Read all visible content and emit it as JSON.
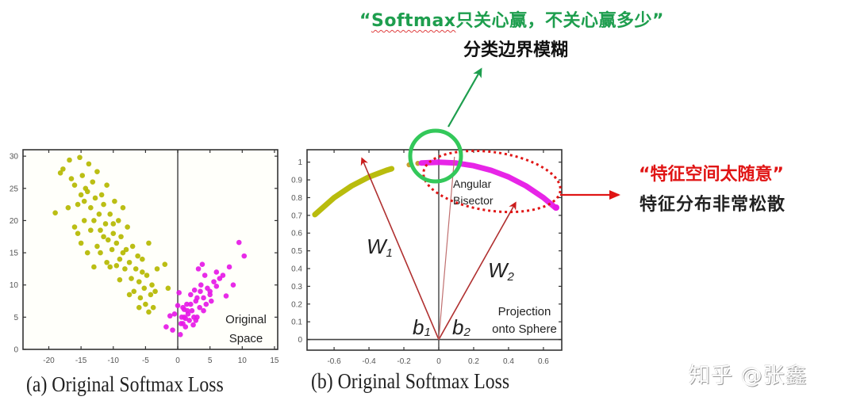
{
  "annotations": {
    "top": {
      "quote_open": "“",
      "softmax_word": "Softmax",
      "title_rest": "只关心赢，不关心赢多少",
      "quote_close": "”",
      "subtitle": "分类边界模糊",
      "color": "#1e9e4e"
    },
    "right": {
      "title": "“特征空间太随意”",
      "subtitle": "特征分布非常松散",
      "color": "#e01515"
    }
  },
  "captions": {
    "a": "(a) Original Softmax Loss",
    "b": "(b) Original Softmax Loss"
  },
  "watermark": "知乎 @张鑫",
  "chart_data": [
    {
      "type": "scatter",
      "title": "(a) Original Softmax Loss",
      "annotation": "Original Space",
      "annotation_lines": [
        "Original",
        "Space"
      ],
      "xlabel": "",
      "ylabel": "",
      "xlim": [
        -24,
        15.5
      ],
      "ylim": [
        0,
        31
      ],
      "xticks": [
        -20,
        -15,
        -10,
        -5,
        0,
        5,
        10,
        15
      ],
      "yticks": [
        0,
        5,
        10,
        15,
        20,
        25,
        30
      ],
      "grid": false,
      "series": [
        {
          "name": "class 1",
          "color": "#b5b800",
          "description": "elongated cluster from about (-19, 29) down to (-4, 6)",
          "points": [
            [
              -19,
              21.2
            ],
            [
              -18.2,
              27.4
            ],
            [
              -17.8,
              28
            ],
            [
              -17,
              22
            ],
            [
              -16.8,
              29.4
            ],
            [
              -16.5,
              26.5
            ],
            [
              -16,
              25.5
            ],
            [
              -15.5,
              22.5
            ],
            [
              -15.2,
              29.8
            ],
            [
              -15,
              24
            ],
            [
              -14.8,
              27
            ],
            [
              -14.5,
              23
            ],
            [
              -14.3,
              25
            ],
            [
              -14,
              24.5
            ],
            [
              -13.8,
              28.8
            ],
            [
              -13.5,
              22
            ],
            [
              -13.2,
              26
            ],
            [
              -13,
              20
            ],
            [
              -12.8,
              23.5
            ],
            [
              -12.5,
              27.6
            ],
            [
              -12.2,
              21
            ],
            [
              -12,
              18.5
            ],
            [
              -11.8,
              24
            ],
            [
              -11.5,
              22.5
            ],
            [
              -11.2,
              19.5
            ],
            [
              -11,
              25.5
            ],
            [
              -10.8,
              17
            ],
            [
              -10.5,
              21
            ],
            [
              -10.2,
              15.5
            ],
            [
              -10,
              18
            ],
            [
              -9.8,
              23
            ],
            [
              -9.5,
              16.5
            ],
            [
              -9.2,
              20
            ],
            [
              -9,
              14
            ],
            [
              -8.8,
              17.5
            ],
            [
              -8.5,
              22
            ],
            [
              -8.2,
              12.5
            ],
            [
              -8,
              15.5
            ],
            [
              -7.8,
              19
            ],
            [
              -7.5,
              13.5
            ],
            [
              -7.2,
              11
            ],
            [
              -7,
              16
            ],
            [
              -6.8,
              9
            ],
            [
              -6.5,
              12.5
            ],
            [
              -6.2,
              14.5
            ],
            [
              -6,
              10.5
            ],
            [
              -5.8,
              8
            ],
            [
              -5.5,
              12
            ],
            [
              -5.2,
              9.5
            ],
            [
              -5,
              7
            ],
            [
              -4.8,
              11.5
            ],
            [
              -4.5,
              5.8
            ],
            [
              -4.2,
              8.5
            ],
            [
              -4,
              10
            ],
            [
              -3.8,
              6.5
            ],
            [
              -3.5,
              9
            ],
            [
              -3.2,
              12.5
            ],
            [
              -2,
              13.2
            ],
            [
              -1.5,
              9.5
            ],
            [
              -12.5,
              16
            ],
            [
              -13.5,
              18.5
            ],
            [
              -11,
              13.5
            ],
            [
              -15,
              16.5
            ],
            [
              -16,
              19
            ],
            [
              -14,
              15
            ],
            [
              -9,
              10.8
            ],
            [
              -10.5,
              12.8
            ],
            [
              -7.5,
              8.5
            ],
            [
              -13,
              12.8
            ],
            [
              -12,
              15
            ],
            [
              -11.5,
              17.5
            ],
            [
              -10,
              19.5
            ],
            [
              -8.5,
              15
            ],
            [
              -9.5,
              13
            ],
            [
              -14.5,
              20
            ],
            [
              -15.5,
              18
            ],
            [
              -6,
              6.5
            ],
            [
              -5.5,
              14
            ],
            [
              -4.5,
              16.5
            ]
          ]
        },
        {
          "name": "class 2",
          "color": "#e619e6",
          "description": "cluster from about (0, 2.5) extending to (10, 16.5)",
          "points": [
            [
              -1.8,
              3.5
            ],
            [
              -1.2,
              5.2
            ],
            [
              -0.8,
              3
            ],
            [
              0,
              6.8
            ],
            [
              0.2,
              8.8
            ],
            [
              0.4,
              2.3
            ],
            [
              0.6,
              5
            ],
            [
              0.8,
              4
            ],
            [
              1,
              6.2
            ],
            [
              1.2,
              3.5
            ],
            [
              1.4,
              7
            ],
            [
              1.6,
              5.5
            ],
            [
              1.8,
              4.5
            ],
            [
              2,
              8.5
            ],
            [
              2.2,
              6
            ],
            [
              2.4,
              3.8
            ],
            [
              2.6,
              9.2
            ],
            [
              2.8,
              7.5
            ],
            [
              3,
              5
            ],
            [
              3.2,
              12.5
            ],
            [
              3.4,
              6.5
            ],
            [
              3.6,
              10
            ],
            [
              3.8,
              13.2
            ],
            [
              4,
              8
            ],
            [
              4.2,
              11.5
            ],
            [
              4.4,
              7
            ],
            [
              4.6,
              9.5
            ],
            [
              5,
              9
            ],
            [
              5.2,
              7.5
            ],
            [
              5.6,
              10.5
            ],
            [
              6,
              12
            ],
            [
              6.5,
              11
            ],
            [
              7,
              11.5
            ],
            [
              7.5,
              8.3
            ],
            [
              8,
              12.8
            ],
            [
              8.6,
              10
            ],
            [
              9.5,
              16.6
            ],
            [
              10.3,
              14.5
            ],
            [
              1,
              5
            ],
            [
              1.5,
              6
            ],
            [
              2.5,
              5
            ],
            [
              0.5,
              4
            ],
            [
              3,
              8
            ],
            [
              2,
              7
            ],
            [
              1.2,
              4.8
            ],
            [
              0.8,
              6.5
            ],
            [
              4,
              6
            ],
            [
              5,
              8.5
            ],
            [
              6,
              9.8
            ],
            [
              3.5,
              9
            ],
            [
              -0.5,
              5.5
            ],
            [
              2.8,
              4.5
            ]
          ]
        }
      ]
    },
    {
      "type": "line",
      "title": "(b) Original Softmax Loss",
      "annotation": "Projection onto Sphere",
      "annotation_lines": [
        "Projection",
        "onto Sphere"
      ],
      "xlabel": "",
      "ylabel": "",
      "xlim": [
        -0.755,
        0.705
      ],
      "ylim": [
        -0.06,
        1.07
      ],
      "xticks": [
        -0.6,
        -0.4,
        -0.2,
        0,
        0.2,
        0.4,
        0.6
      ],
      "yticks": [
        0,
        0.1,
        0.2,
        0.3,
        0.4,
        0.5,
        0.6,
        0.7,
        0.8,
        0.9,
        1
      ],
      "grid": false,
      "series": [
        {
          "name": "class 1 projected",
          "color": "#b5b800",
          "description": "arc of unit circle on the left side",
          "points": [
            [
              -0.71,
              0.704
            ],
            [
              -0.6,
              0.8
            ],
            [
              -0.5,
              0.866
            ],
            [
              -0.4,
              0.917
            ],
            [
              -0.3,
              0.954
            ],
            [
              -0.27,
              0.963
            ]
          ]
        },
        {
          "name": "class 1 stragglers",
          "color": "#c8a030",
          "points": [
            [
              -0.17,
              0.985
            ],
            [
              -0.12,
              0.993
            ]
          ]
        },
        {
          "name": "class 2 projected",
          "color": "#e619e6",
          "description": "arc of unit circle on the right side",
          "points": [
            [
              -0.1,
              0.995
            ],
            [
              0,
              1.0
            ],
            [
              0.1,
              0.995
            ],
            [
              0.2,
              0.98
            ],
            [
              0.3,
              0.954
            ],
            [
              0.4,
              0.917
            ],
            [
              0.5,
              0.866
            ],
            [
              0.6,
              0.8
            ],
            [
              0.67,
              0.742
            ]
          ]
        }
      ],
      "vectors": [
        {
          "label": "W1",
          "label_main": "W",
          "label_sub": "1",
          "from": [
            0,
            0
          ],
          "to": [
            -0.44,
            1.02
          ],
          "color": "#b03030"
        },
        {
          "label": "W2",
          "label_main": "W",
          "label_sub": "2",
          "from": [
            0,
            0
          ],
          "to": [
            0.44,
            0.77
          ],
          "color": "#b03030"
        },
        {
          "label": "Angular Bisector",
          "label_lines": [
            "Angular",
            "Bisector"
          ],
          "from": [
            0,
            0
          ],
          "to": [
            0.09,
            1.03
          ],
          "color": "#c07070"
        }
      ],
      "bias_labels": [
        {
          "main": "b",
          "sub": "1"
        },
        {
          "main": "b",
          "sub": "2"
        }
      ],
      "highlights": [
        {
          "shape": "circle",
          "color": "#33c85a",
          "center": [
            -0.08,
            1.0
          ],
          "meaning": "classification boundary unclear"
        },
        {
          "shape": "dotted-ellipse",
          "color": "#e01515",
          "meaning": "feature space too loose"
        }
      ]
    }
  ]
}
